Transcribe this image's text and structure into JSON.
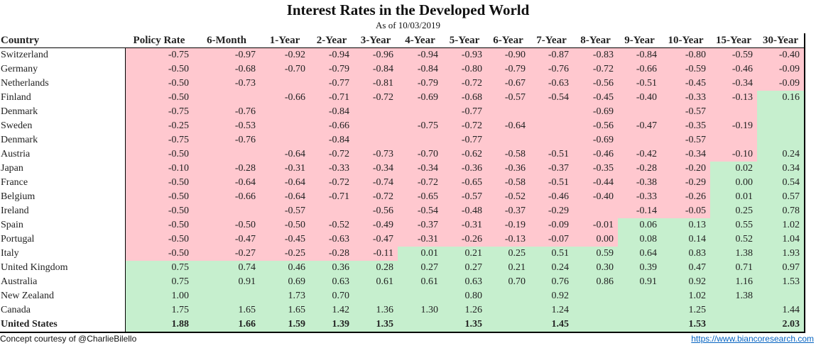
{
  "title": "Interest Rates in the Developed World",
  "subtitle": "As of 10/03/2019",
  "columns": [
    "Country",
    "Policy Rate",
    "6-Month",
    "1-Year",
    "2-Year",
    "3-Year",
    "4-Year",
    "5-Year",
    "6-Year",
    "7-Year",
    "8-Year",
    "9-Year",
    "10-Year",
    "15-Year",
    "30-Year"
  ],
  "colors": {
    "negative": "#ffc8cf",
    "positive": "#c6efce"
  },
  "rows": [
    {
      "country": "Switzerland",
      "values": [
        "-0.75",
        "-0.97",
        "-0.92",
        "-0.94",
        "-0.96",
        "-0.94",
        "-0.93",
        "-0.90",
        "-0.87",
        "-0.83",
        "-0.84",
        "-0.80",
        "-0.59",
        "-0.40"
      ],
      "signs": [
        "n",
        "n",
        "n",
        "n",
        "n",
        "n",
        "n",
        "n",
        "n",
        "n",
        "n",
        "n",
        "n",
        "n"
      ]
    },
    {
      "country": "Germany",
      "values": [
        "-0.50",
        "-0.68",
        "-0.70",
        "-0.79",
        "-0.84",
        "-0.84",
        "-0.80",
        "-0.79",
        "-0.76",
        "-0.72",
        "-0.66",
        "-0.59",
        "-0.46",
        "-0.09"
      ],
      "signs": [
        "n",
        "n",
        "n",
        "n",
        "n",
        "n",
        "n",
        "n",
        "n",
        "n",
        "n",
        "n",
        "n",
        "n"
      ]
    },
    {
      "country": "Netherlands",
      "values": [
        "-0.50",
        "-0.73",
        "",
        "-0.77",
        "-0.81",
        "-0.79",
        "-0.72",
        "-0.67",
        "-0.63",
        "-0.56",
        "-0.51",
        "-0.45",
        "-0.34",
        "-0.09"
      ],
      "signs": [
        "n",
        "n",
        "n",
        "n",
        "n",
        "n",
        "n",
        "n",
        "n",
        "n",
        "n",
        "n",
        "n",
        "n"
      ]
    },
    {
      "country": "Finland",
      "values": [
        "-0.50",
        "",
        "-0.66",
        "-0.71",
        "-0.72",
        "-0.69",
        "-0.68",
        "-0.57",
        "-0.54",
        "-0.45",
        "-0.40",
        "-0.33",
        "-0.13",
        "0.16"
      ],
      "signs": [
        "n",
        "n",
        "n",
        "n",
        "n",
        "n",
        "n",
        "n",
        "n",
        "n",
        "n",
        "n",
        "n",
        "p"
      ]
    },
    {
      "country": "Denmark",
      "values": [
        "-0.75",
        "-0.76",
        "",
        "-0.84",
        "",
        "",
        "-0.77",
        "",
        "",
        "-0.69",
        "",
        "-0.57",
        "",
        ""
      ],
      "signs": [
        "n",
        "n",
        "n",
        "n",
        "n",
        "n",
        "n",
        "n",
        "n",
        "n",
        "n",
        "n",
        "n",
        "p"
      ]
    },
    {
      "country": "Sweden",
      "values": [
        "-0.25",
        "-0.53",
        "",
        "-0.66",
        "",
        "-0.75",
        "-0.72",
        "-0.64",
        "",
        "-0.56",
        "-0.47",
        "-0.35",
        "-0.19",
        ""
      ],
      "signs": [
        "n",
        "n",
        "n",
        "n",
        "n",
        "n",
        "n",
        "n",
        "n",
        "n",
        "n",
        "n",
        "n",
        "p"
      ]
    },
    {
      "country": "Denmark",
      "values": [
        "-0.75",
        "-0.76",
        "",
        "-0.84",
        "",
        "",
        "-0.77",
        "",
        "",
        "-0.69",
        "",
        "-0.57",
        "",
        ""
      ],
      "signs": [
        "n",
        "n",
        "n",
        "n",
        "n",
        "n",
        "n",
        "n",
        "n",
        "n",
        "n",
        "n",
        "n",
        "p"
      ]
    },
    {
      "country": "Austria",
      "values": [
        "-0.50",
        "",
        "-0.64",
        "-0.72",
        "-0.73",
        "-0.70",
        "-0.62",
        "-0.58",
        "-0.51",
        "-0.46",
        "-0.42",
        "-0.34",
        "-0.10",
        "0.24"
      ],
      "signs": [
        "n",
        "n",
        "n",
        "n",
        "n",
        "n",
        "n",
        "n",
        "n",
        "n",
        "n",
        "n",
        "n",
        "p"
      ]
    },
    {
      "country": "Japan",
      "values": [
        "-0.10",
        "-0.28",
        "-0.31",
        "-0.33",
        "-0.34",
        "-0.34",
        "-0.36",
        "-0.36",
        "-0.37",
        "-0.35",
        "-0.28",
        "-0.20",
        "0.02",
        "0.34"
      ],
      "signs": [
        "n",
        "n",
        "n",
        "n",
        "n",
        "n",
        "n",
        "n",
        "n",
        "n",
        "n",
        "n",
        "p",
        "p"
      ]
    },
    {
      "country": "France",
      "values": [
        "-0.50",
        "-0.64",
        "-0.64",
        "-0.72",
        "-0.74",
        "-0.72",
        "-0.65",
        "-0.58",
        "-0.51",
        "-0.44",
        "-0.38",
        "-0.29",
        "0.00",
        "0.54"
      ],
      "signs": [
        "n",
        "n",
        "n",
        "n",
        "n",
        "n",
        "n",
        "n",
        "n",
        "n",
        "n",
        "n",
        "p",
        "p"
      ]
    },
    {
      "country": "Belgium",
      "values": [
        "-0.50",
        "-0.66",
        "-0.64",
        "-0.71",
        "-0.72",
        "-0.65",
        "-0.57",
        "-0.52",
        "-0.46",
        "-0.40",
        "-0.33",
        "-0.26",
        "0.01",
        "0.57"
      ],
      "signs": [
        "n",
        "n",
        "n",
        "n",
        "n",
        "n",
        "n",
        "n",
        "n",
        "n",
        "n",
        "n",
        "p",
        "p"
      ]
    },
    {
      "country": "Ireland",
      "values": [
        "-0.50",
        "",
        "-0.57",
        "",
        "-0.56",
        "-0.54",
        "-0.48",
        "-0.37",
        "-0.29",
        "",
        "-0.14",
        "-0.05",
        "0.25",
        "0.78"
      ],
      "signs": [
        "n",
        "n",
        "n",
        "n",
        "n",
        "n",
        "n",
        "n",
        "n",
        "n",
        "n",
        "n",
        "p",
        "p"
      ]
    },
    {
      "country": "Spain",
      "values": [
        "-0.50",
        "-0.50",
        "-0.50",
        "-0.52",
        "-0.49",
        "-0.37",
        "-0.31",
        "-0.19",
        "-0.09",
        "-0.01",
        "0.06",
        "0.13",
        "0.55",
        "1.02"
      ],
      "signs": [
        "n",
        "n",
        "n",
        "n",
        "n",
        "n",
        "n",
        "n",
        "n",
        "n",
        "p",
        "p",
        "p",
        "p"
      ]
    },
    {
      "country": "Portugal",
      "values": [
        "-0.50",
        "-0.47",
        "-0.45",
        "-0.63",
        "-0.47",
        "-0.31",
        "-0.26",
        "-0.13",
        "-0.07",
        "0.00",
        "0.08",
        "0.14",
        "0.52",
        "1.04"
      ],
      "signs": [
        "n",
        "n",
        "n",
        "n",
        "n",
        "n",
        "n",
        "n",
        "n",
        "n",
        "p",
        "p",
        "p",
        "p"
      ]
    },
    {
      "country": "Italy",
      "values": [
        "-0.50",
        "-0.27",
        "-0.25",
        "-0.28",
        "-0.11",
        "0.01",
        "0.21",
        "0.25",
        "0.51",
        "0.59",
        "0.64",
        "0.83",
        "1.38",
        "1.93"
      ],
      "signs": [
        "n",
        "n",
        "n",
        "n",
        "n",
        "p",
        "p",
        "p",
        "p",
        "p",
        "p",
        "p",
        "p",
        "p"
      ]
    },
    {
      "country": "United Kingdom",
      "values": [
        "0.75",
        "0.74",
        "0.46",
        "0.36",
        "0.28",
        "0.27",
        "0.27",
        "0.21",
        "0.24",
        "0.30",
        "0.39",
        "0.47",
        "0.71",
        "0.97"
      ],
      "signs": [
        "p",
        "p",
        "p",
        "p",
        "p",
        "p",
        "p",
        "p",
        "p",
        "p",
        "p",
        "p",
        "p",
        "p"
      ]
    },
    {
      "country": "Australia",
      "values": [
        "0.75",
        "0.91",
        "0.69",
        "0.63",
        "0.61",
        "0.61",
        "0.63",
        "0.70",
        "0.76",
        "0.86",
        "0.91",
        "0.92",
        "1.16",
        "1.53"
      ],
      "signs": [
        "p",
        "p",
        "p",
        "p",
        "p",
        "p",
        "p",
        "p",
        "p",
        "p",
        "p",
        "p",
        "p",
        "p"
      ]
    },
    {
      "country": "New Zealand",
      "values": [
        "1.00",
        "",
        "1.73",
        "0.70",
        "",
        "",
        "0.80",
        "",
        "0.92",
        "",
        "",
        "1.02",
        "1.38",
        ""
      ],
      "signs": [
        "p",
        "p",
        "p",
        "p",
        "p",
        "p",
        "p",
        "p",
        "p",
        "p",
        "p",
        "p",
        "p",
        "p"
      ]
    },
    {
      "country": "Canada",
      "values": [
        "1.75",
        "1.65",
        "1.65",
        "1.42",
        "1.36",
        "1.30",
        "1.26",
        "",
        "1.24",
        "",
        "",
        "1.25",
        "",
        "1.44"
      ],
      "signs": [
        "p",
        "p",
        "p",
        "p",
        "p",
        "p",
        "p",
        "p",
        "p",
        "p",
        "p",
        "p",
        "p",
        "p"
      ]
    },
    {
      "country": "United States",
      "values": [
        "1.88",
        "1.66",
        "1.59",
        "1.39",
        "1.35",
        "",
        "1.35",
        "",
        "1.45",
        "",
        "",
        "1.53",
        "",
        "2.03"
      ],
      "signs": [
        "p",
        "p",
        "p",
        "p",
        "p",
        "p",
        "p",
        "p",
        "p",
        "p",
        "p",
        "p",
        "p",
        "p"
      ],
      "bold": true
    }
  ],
  "footer": {
    "credit": "Concept courtesy of @CharlieBilello",
    "link": "https://www.biancoresearch.com"
  }
}
